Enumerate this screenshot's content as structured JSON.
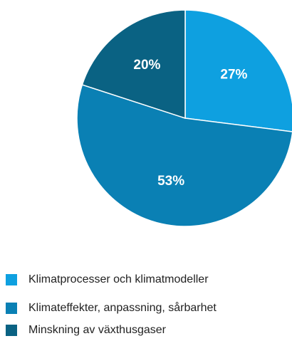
{
  "chart_data": {
    "type": "pie",
    "categories": [
      "Klimatprocesser och klimatmodeller",
      "Klimateffekter, anpassning, sårbarhet",
      "Minskning av växthusgaser"
    ],
    "values": [
      27,
      53,
      20
    ],
    "value_labels": [
      "27%",
      "53%",
      "20%"
    ],
    "colors": [
      "#0ea0e0",
      "#0a80b4",
      "#0a6283"
    ]
  }
}
